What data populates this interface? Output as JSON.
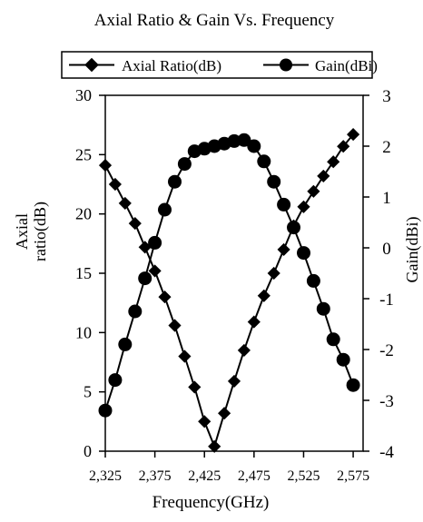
{
  "chart_data": {
    "type": "line",
    "title": "Axial Ratio & Gain Vs. Frequency",
    "xlabel": "Frequency(GHz)",
    "ylabel_left_lines": [
      "Axial",
      "ratio(dB)"
    ],
    "ylabel_right": "Gain(dBi)",
    "xlim": [
      2325,
      2585
    ],
    "ylim_left": [
      0,
      30
    ],
    "ylim_right": [
      -4,
      3
    ],
    "x_ticks": [
      2325,
      2375,
      2425,
      2475,
      2525,
      2575
    ],
    "x_tick_labels": [
      "2,325",
      "2,375",
      "2,425",
      "2,475",
      "2,525",
      "2,575"
    ],
    "y_left_ticks": [
      0,
      5,
      10,
      15,
      20,
      25,
      30
    ],
    "y_left_tick_labels": [
      "0",
      "5",
      "10",
      "15",
      "20",
      "25",
      "30"
    ],
    "y_right_ticks": [
      -4,
      -3,
      -2,
      -1,
      0,
      1,
      2,
      3
    ],
    "y_right_tick_labels": [
      "-4",
      "-3",
      "-2",
      "-1",
      "0",
      "1",
      "2",
      "3"
    ],
    "grid": false,
    "legend_position": "top",
    "series": [
      {
        "name": "Axial Ratio(dB)",
        "axis": "left",
        "marker": "diamond",
        "x": [
          2325,
          2335,
          2345,
          2355,
          2365,
          2375,
          2385,
          2395,
          2405,
          2415,
          2425,
          2435,
          2445,
          2455,
          2465,
          2475,
          2485,
          2495,
          2505,
          2515,
          2525,
          2535,
          2545,
          2555,
          2565,
          2575
        ],
        "y": [
          24.1,
          22.5,
          20.9,
          19.2,
          17.2,
          15.2,
          13.0,
          10.6,
          8.0,
          5.4,
          2.5,
          0.4,
          3.2,
          5.9,
          8.5,
          10.9,
          13.1,
          15.0,
          17.0,
          19.0,
          20.6,
          21.9,
          23.2,
          24.4,
          25.7,
          26.7
        ]
      },
      {
        "name": "Gain(dBi)",
        "axis": "right",
        "marker": "circle",
        "x": [
          2325,
          2335,
          2345,
          2355,
          2365,
          2375,
          2385,
          2395,
          2405,
          2415,
          2425,
          2435,
          2445,
          2455,
          2465,
          2475,
          2485,
          2495,
          2505,
          2515,
          2525,
          2535,
          2545,
          2555,
          2565,
          2575
        ],
        "y": [
          -3.2,
          -2.6,
          -1.9,
          -1.25,
          -0.6,
          0.1,
          0.75,
          1.3,
          1.65,
          1.9,
          1.95,
          2.0,
          2.05,
          2.1,
          2.12,
          2.0,
          1.7,
          1.3,
          0.85,
          0.4,
          -0.1,
          -0.65,
          -1.2,
          -1.8,
          -2.2,
          -2.7
        ]
      }
    ]
  }
}
